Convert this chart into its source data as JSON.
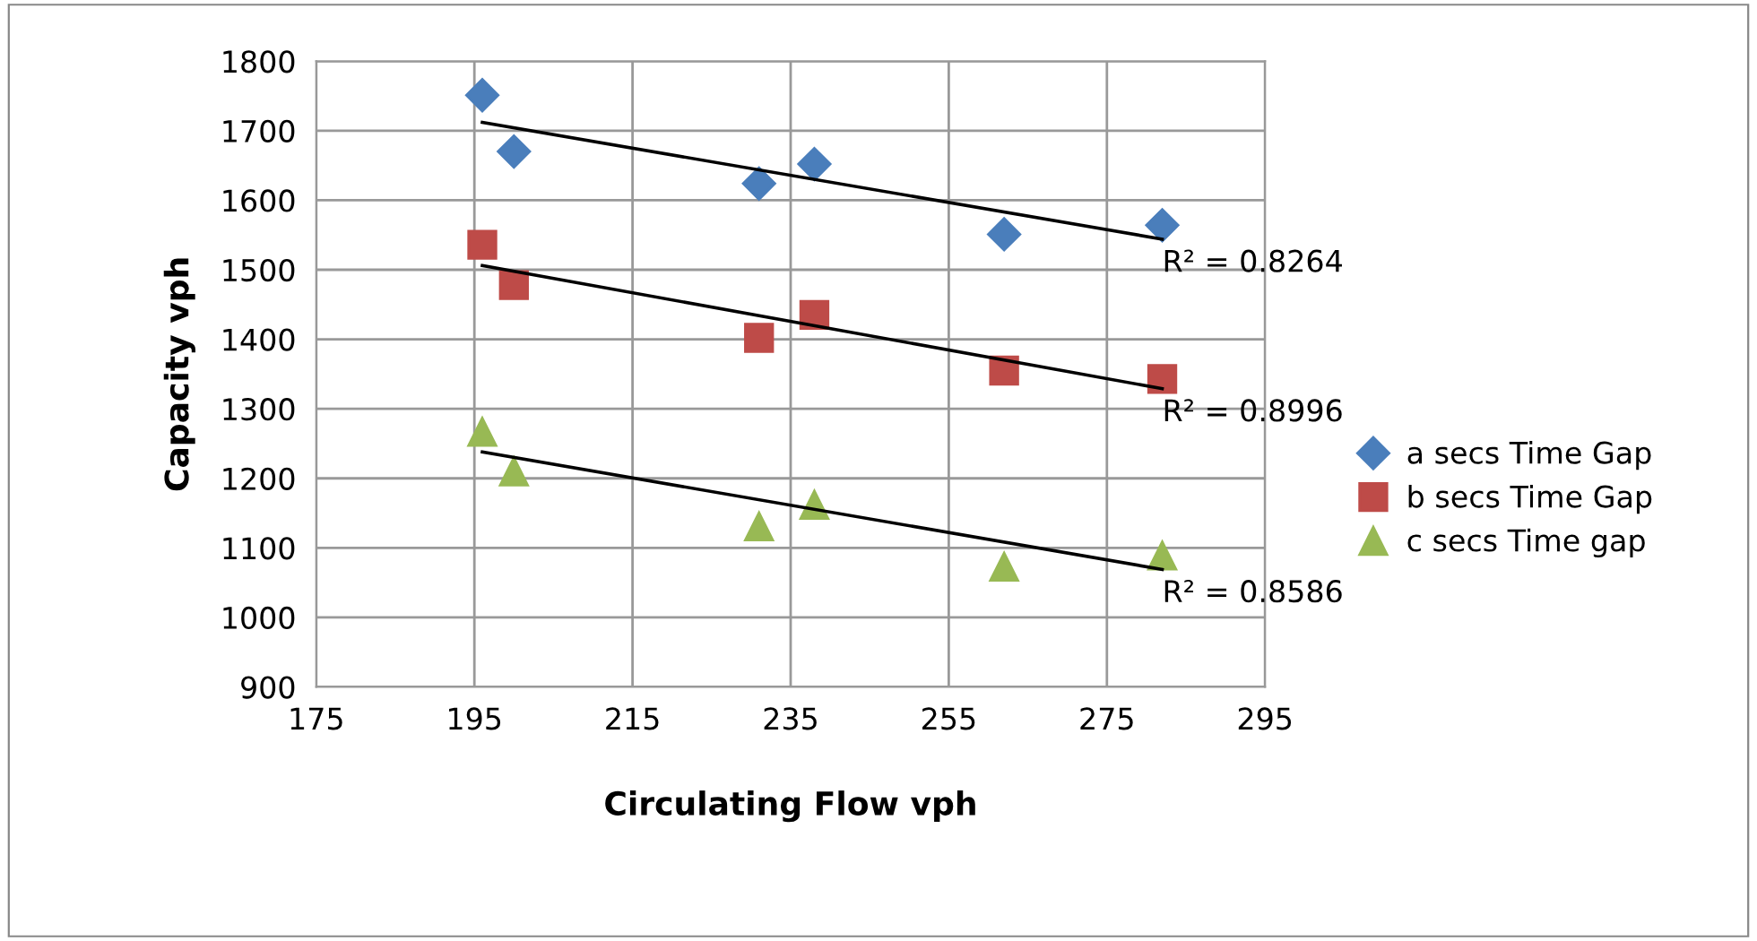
{
  "chart_data": {
    "type": "scatter",
    "xlabel": "Circulating Flow vph",
    "ylabel": "Capacity vph",
    "xlim": [
      175,
      295
    ],
    "xticks": [
      175,
      195,
      215,
      235,
      255,
      275,
      295
    ],
    "ylim": [
      900,
      1800
    ],
    "yticks": [
      900,
      1000,
      1100,
      1200,
      1300,
      1400,
      1500,
      1600,
      1700,
      1800
    ],
    "grid": true,
    "legend": "right",
    "series": [
      {
        "name": "a secs Time Gap",
        "color": "#4a7ebb",
        "marker": "diamond",
        "x": [
          196,
          200,
          231,
          238,
          262,
          282
        ],
        "values": [
          1751,
          1670,
          1624,
          1652,
          1551,
          1564
        ]
      },
      {
        "name": "b secs Time Gap",
        "color": "#be4b48",
        "marker": "square",
        "x": [
          196,
          200,
          231,
          238,
          262,
          282
        ],
        "values": [
          1536,
          1478,
          1402,
          1435,
          1355,
          1343
        ]
      },
      {
        "name": "c secs Time gap",
        "color": "#98b954",
        "marker": "triangle",
        "x": [
          196,
          200,
          231,
          238,
          262,
          282
        ],
        "values": [
          1267,
          1210,
          1131,
          1162,
          1073,
          1089
        ]
      },
      {
        "type": "line",
        "color": "#000000",
        "marker": "none",
        "x": [
          196,
          282
        ],
        "values": [
          1712,
          1544
        ]
      },
      {
        "type": "line",
        "color": "#000000",
        "marker": "none",
        "x": [
          196,
          282
        ],
        "values": [
          1506,
          1329
        ]
      },
      {
        "type": "line",
        "color": "#000000",
        "marker": "none",
        "x": [
          196,
          282
        ],
        "values": [
          1238,
          1069
        ]
      }
    ],
    "annotations": [
      "R² = 0.8264",
      "R² = 0.8996",
      "R² = 0.8586"
    ]
  }
}
